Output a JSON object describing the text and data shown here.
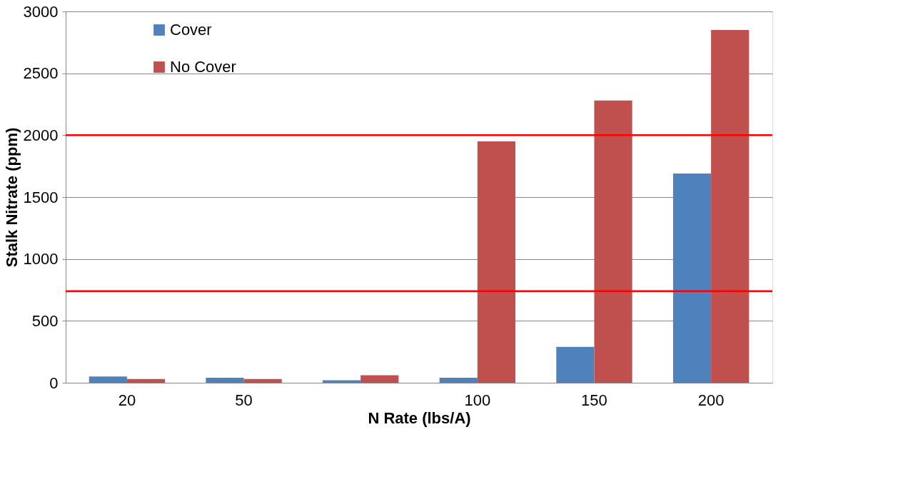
{
  "chart_data": {
    "type": "bar",
    "xlabel": "N Rate (lbs/A)",
    "ylabel": "Stalk Nitrate (ppm)",
    "categories": [
      "20",
      "50",
      null,
      "100",
      "150",
      "200"
    ],
    "series": [
      {
        "name": "Cover",
        "color": "#4f81bd",
        "values": [
          50,
          40,
          20,
          40,
          290,
          1690
        ]
      },
      {
        "name": "No Cover",
        "color": "#c0504d",
        "values": [
          30,
          30,
          60,
          1950,
          2280,
          2850
        ]
      }
    ],
    "ylim": [
      0,
      3000
    ],
    "yticks": [
      0,
      500,
      1000,
      1500,
      2000,
      2500,
      3000
    ],
    "grid": "y",
    "legend": "top left",
    "ref_lines": [
      {
        "axis": "y",
        "value": 2000,
        "color": "#ff0000"
      },
      {
        "axis": "y",
        "value": 740,
        "color": "#ff0000"
      }
    ]
  }
}
